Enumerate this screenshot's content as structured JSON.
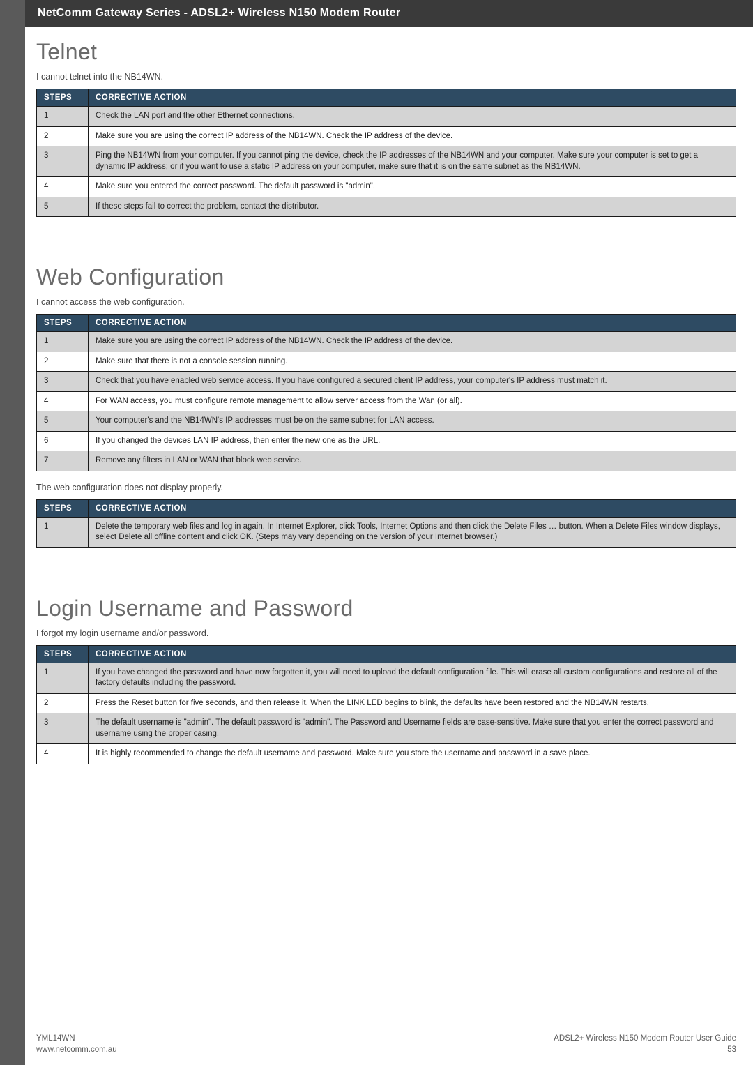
{
  "header": {
    "title": "NetComm Gateway Series - ADSL2+ Wireless N150 Modem Router"
  },
  "sections": {
    "telnet": {
      "heading": "Telnet",
      "caption": "I cannot telnet into the NB14WN.",
      "cols": {
        "steps": "STEPS",
        "action": "CORRECTIVE ACTION"
      },
      "rows": [
        {
          "n": "1",
          "t": "Check the LAN port and the other Ethernet connections."
        },
        {
          "n": "2",
          "t": "Make sure you are using the correct IP address of the NB14WN. Check the IP address of the device."
        },
        {
          "n": "3",
          "t": "Ping the NB14WN from your computer. If you cannot ping the device, check the IP addresses of the NB14WN and your computer. Make sure your computer is set to get a dynamic IP address; or if you want to use a static IP address on your computer, make sure that it is on the same subnet as the NB14WN."
        },
        {
          "n": "4",
          "t": "Make sure you entered the correct password. The default password is \"admin\"."
        },
        {
          "n": "5",
          "t": "If these steps fail to correct the problem, contact the distributor."
        }
      ]
    },
    "web": {
      "heading": "Web Configuration",
      "caption1": "I cannot access the web configuration.",
      "cols": {
        "steps": "STEPS",
        "action": "CORRECTIVE ACTION"
      },
      "rows1": [
        {
          "n": "1",
          "t": "Make sure you are using the correct IP address of the NB14WN. Check the IP address of the device."
        },
        {
          "n": "2",
          "t": "Make sure that there is not a console session running."
        },
        {
          "n": "3",
          "t": "Check that you have enabled web service access. If you have configured a secured client IP address, your computer's IP address must match it."
        },
        {
          "n": "4",
          "t": "For WAN access, you must configure remote management to allow server access from the Wan (or all)."
        },
        {
          "n": "5",
          "t": "Your computer's and the NB14WN's IP addresses must be on the same subnet for LAN access."
        },
        {
          "n": "6",
          "t": "If you changed the devices LAN IP address, then enter the new one as the URL."
        },
        {
          "n": "7",
          "t": "Remove any filters in LAN or WAN that block web service."
        }
      ],
      "caption2": "The web configuration does not display properly.",
      "rows2": [
        {
          "n": "1",
          "t": "Delete the temporary web files and log in again. In Internet Explorer, click Tools, Internet Options and then click the Delete Files … button. When a Delete Files window displays, select Delete all offline content and click OK. (Steps may vary depending on the version of your Internet browser.)"
        }
      ]
    },
    "login": {
      "heading": "Login Username and Password",
      "caption": "I forgot my login username and/or password.",
      "cols": {
        "steps": "STEPS",
        "action": "CORRECTIVE ACTION"
      },
      "rows": [
        {
          "n": "1",
          "t": "If you have changed the password and have now forgotten it, you will need to upload the default configuration file. This will erase all custom configurations and restore all of the factory defaults including the password."
        },
        {
          "n": "2",
          "t": "Press the Reset button for five seconds, and then release it. When the LINK LED begins to blink, the defaults have been restored and the NB14WN restarts."
        },
        {
          "n": "3",
          "t": "The default username is \"admin\". The default password is \"admin\". The Password and Username fields are case-sensitive. Make sure that you enter the correct password and username using the proper casing."
        },
        {
          "n": "4",
          "t": "It is highly recommended to change the default username and password. Make sure you store the username and password in a save place."
        }
      ]
    }
  },
  "footer": {
    "left1": "YML14WN",
    "left2": "www.netcomm.com.au",
    "right1": "ADSL2+ Wireless N150 Modem Router User Guide",
    "right2": "53"
  }
}
